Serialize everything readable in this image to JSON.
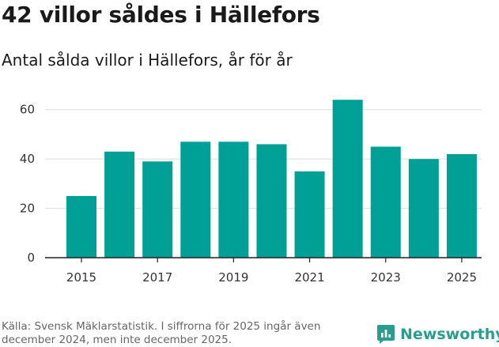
{
  "title": "42 villor såldes i Hällefors",
  "subtitle": "Antal sålda villor i Hällefors, år för år",
  "source": "Källa: Svensk Mäklarstatistik. I siffrorna för 2025 ingår även december 2024, men inte december 2025.",
  "brand": {
    "name": "Newsworthy",
    "icon": "newsworthy-logo-icon",
    "color": "#2a9d8f"
  },
  "chart_data": {
    "type": "bar",
    "categories": [
      "2015",
      "2016",
      "2017",
      "2018",
      "2019",
      "2020",
      "2021",
      "2022",
      "2023",
      "2024",
      "2025"
    ],
    "values": [
      25,
      43,
      39,
      47,
      47,
      46,
      35,
      64,
      45,
      40,
      42
    ],
    "x_tick_labels": [
      "2015",
      "2017",
      "2019",
      "2021",
      "2023",
      "2025"
    ],
    "y_ticks": [
      0,
      20,
      40,
      60
    ],
    "ylim": [
      0,
      66
    ],
    "xlabel": "",
    "ylabel": "",
    "bar_color": "#00a096",
    "grid": true,
    "legend": "none"
  }
}
